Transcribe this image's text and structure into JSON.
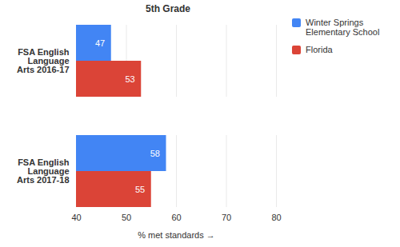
{
  "chart_data": {
    "type": "bar",
    "orientation": "horizontal",
    "title": "5th Grade",
    "categories": [
      "FSA English Language Arts 2016-17",
      "FSA English Language Arts 2017-18"
    ],
    "series": [
      {
        "name": "Winter Springs Elementary School",
        "color": "#4285f4",
        "values": [
          47,
          58
        ]
      },
      {
        "name": "Florida",
        "color": "#db4437",
        "values": [
          53,
          55
        ]
      }
    ],
    "xlabel": "% met standards",
    "xlim": [
      40,
      80
    ],
    "xticks": [
      40,
      50,
      60,
      70,
      80
    ],
    "grid": true,
    "legend": "top-right",
    "data_labels": true
  }
}
